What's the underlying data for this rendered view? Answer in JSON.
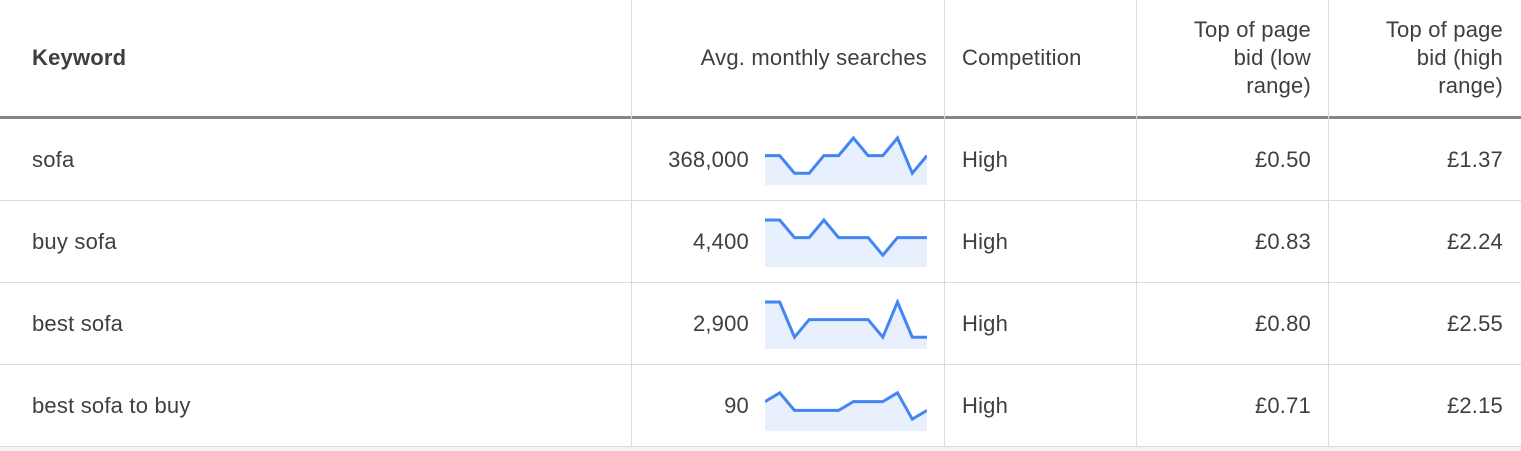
{
  "columns": {
    "keyword": "Keyword",
    "avg_monthly_searches": "Avg. monthly searches",
    "competition": "Competition",
    "top_bid_low": [
      "Top of page",
      "bid (low",
      "range)"
    ],
    "top_bid_high": [
      "Top of page",
      "bid (high",
      "range)"
    ]
  },
  "rows": [
    {
      "keyword": "sofa",
      "searches": "368,000",
      "trend": [
        3,
        3,
        1,
        1,
        3,
        3,
        5,
        3,
        3,
        5,
        1,
        3
      ],
      "competition": "High",
      "bid_low": "£0.50",
      "bid_high": "£1.37"
    },
    {
      "keyword": "buy sofa",
      "searches": "4,400",
      "trend": [
        5,
        5,
        3,
        3,
        5,
        3,
        3,
        3,
        1,
        3,
        3,
        3
      ],
      "competition": "High",
      "bid_low": "£0.83",
      "bid_high": "£2.24"
    },
    {
      "keyword": "best sofa",
      "searches": "2,900",
      "trend": [
        5,
        5,
        1,
        3,
        3,
        3,
        3,
        3,
        1,
        5,
        1,
        1
      ],
      "competition": "High",
      "bid_low": "£0.80",
      "bid_high": "£2.55"
    },
    {
      "keyword": "best sofa to buy",
      "searches": "90",
      "trend": [
        3,
        4,
        2,
        2,
        2,
        2,
        3,
        3,
        3,
        4,
        1,
        2
      ],
      "competition": "High",
      "bid_low": "£0.71",
      "bid_high": "£2.15"
    }
  ],
  "colors": {
    "trend_line": "#4285f4",
    "trend_fill": "#e8f0fe"
  }
}
